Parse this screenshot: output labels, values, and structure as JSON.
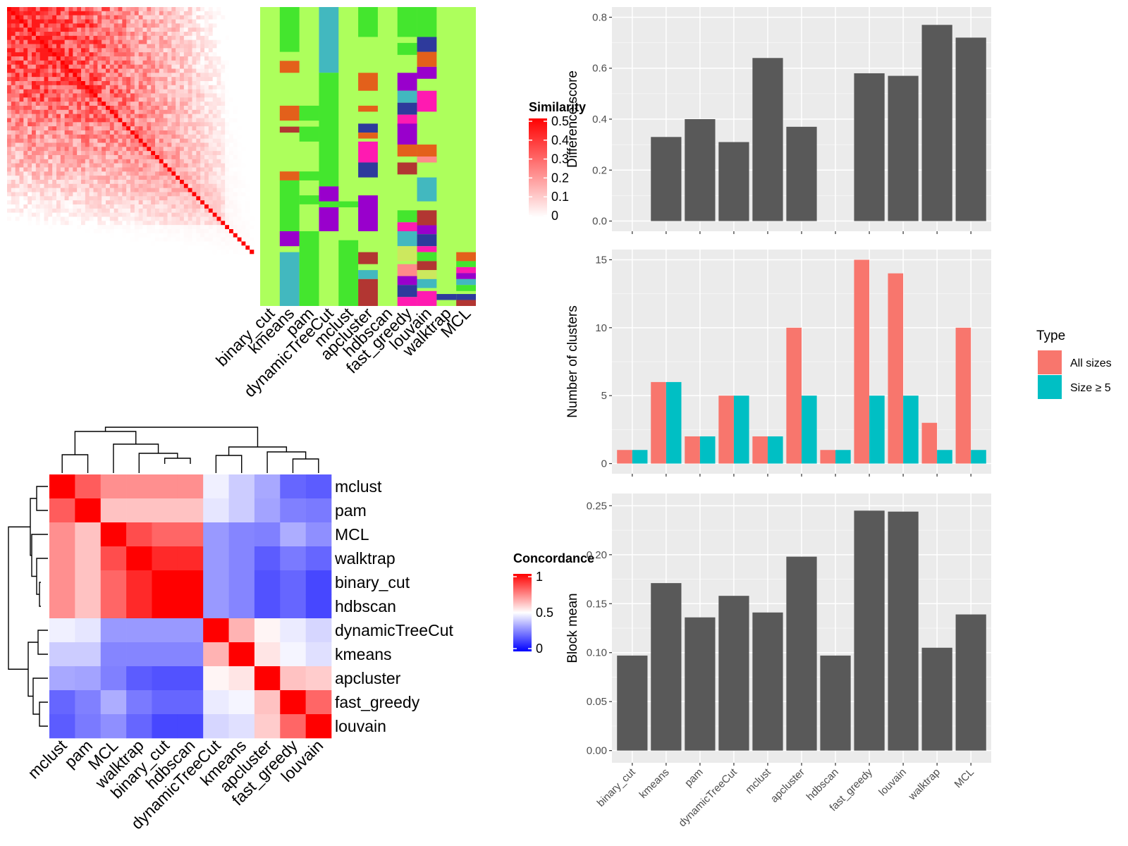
{
  "methods": [
    "binary_cut",
    "kmeans",
    "pam",
    "dynamicTreeCut",
    "mclust",
    "apcluster",
    "hdbscan",
    "fast_greedy",
    "louvain",
    "walktrap",
    "MCL"
  ],
  "similarity_heatmap": {
    "legend_title": "Similarity",
    "legend_ticks": [
      "0.5",
      "0.4",
      "0.3",
      "0.2",
      "0.1",
      "0"
    ],
    "n": 60,
    "colors": {
      "low": "#ffffff",
      "high": "#ff0000"
    }
  },
  "class_panel": {
    "columns": [
      "binary_cut",
      "kmeans",
      "pam",
      "dynamicTreeCut",
      "mclust",
      "apcluster",
      "hdbscan",
      "fast_greedy",
      "louvain",
      "walktrap",
      "MCL"
    ],
    "background": "#adff5c",
    "palette": [
      "#adff5c",
      "#44e62e",
      "#e3601b",
      "#42b8bf",
      "#9900cc",
      "#b23632",
      "#2e3a9c",
      "#ff1ab1",
      "#cce85e",
      "#ff8a8a"
    ]
  },
  "concordance_heatmap": {
    "legend_title": "Concordance",
    "legend_ticks": [
      "1",
      "0.5",
      "0"
    ],
    "row_labels": [
      "mclust",
      "pam",
      "MCL",
      "walktrap",
      "binary_cut",
      "hdbscan",
      "dynamicTreeCut",
      "kmeans",
      "apcluster",
      "fast_greedy",
      "louvain"
    ],
    "col_labels": [
      "mclust",
      "pam",
      "MCL",
      "walktrap",
      "binary_cut",
      "hdbscan",
      "dynamicTreeCut",
      "kmeans",
      "apcluster",
      "fast_greedy",
      "louvain"
    ],
    "colors": {
      "low": "#0000ff",
      "mid": "#ffffff",
      "high": "#ff0000"
    }
  },
  "legend_type": {
    "title": "Type",
    "items": [
      {
        "label": "All sizes",
        "color": "#f8766d"
      },
      {
        "label": "Size ≥ 5",
        "color": "#00bfc4"
      }
    ]
  },
  "chart_data": [
    {
      "type": "heatmap",
      "title": "",
      "legend_title": "Similarity",
      "value_range": [
        0,
        0.5
      ],
      "rows": 60,
      "cols": 60,
      "note": ""
    },
    {
      "type": "heatmap",
      "title": "",
      "legend_title": "Concordance",
      "value_range": [
        0,
        1
      ],
      "rows": [
        "mclust",
        "pam",
        "MCL",
        "walktrap",
        "binary_cut",
        "hdbscan",
        "dynamicTreeCut",
        "kmeans",
        "apcluster",
        "fast_greedy",
        "louvain"
      ],
      "cols": [
        "mclust",
        "pam",
        "MCL",
        "walktrap",
        "binary_cut",
        "hdbscan",
        "dynamicTreeCut",
        "kmeans",
        "apcluster",
        "fast_greedy",
        "louvain"
      ],
      "values": [
        [
          1.0,
          0.82,
          0.72,
          0.72,
          0.72,
          0.72,
          0.47,
          0.4,
          0.33,
          0.2,
          0.18
        ],
        [
          0.82,
          1.0,
          0.62,
          0.62,
          0.62,
          0.62,
          0.45,
          0.4,
          0.32,
          0.25,
          0.24
        ],
        [
          0.72,
          0.62,
          1.0,
          0.85,
          0.8,
          0.8,
          0.3,
          0.26,
          0.25,
          0.34,
          0.28
        ],
        [
          0.72,
          0.62,
          0.85,
          1.0,
          0.92,
          0.92,
          0.3,
          0.26,
          0.18,
          0.24,
          0.2
        ],
        [
          0.72,
          0.62,
          0.8,
          0.92,
          1.0,
          1.0,
          0.3,
          0.26,
          0.16,
          0.2,
          0.14
        ],
        [
          0.72,
          0.62,
          0.8,
          0.92,
          1.0,
          1.0,
          0.3,
          0.26,
          0.16,
          0.2,
          0.14
        ],
        [
          0.47,
          0.45,
          0.3,
          0.3,
          0.3,
          0.3,
          1.0,
          0.65,
          0.52,
          0.46,
          0.42
        ],
        [
          0.4,
          0.4,
          0.26,
          0.26,
          0.26,
          0.26,
          0.65,
          1.0,
          0.55,
          0.48,
          0.44
        ],
        [
          0.33,
          0.32,
          0.25,
          0.18,
          0.16,
          0.16,
          0.52,
          0.55,
          1.0,
          0.62,
          0.6
        ],
        [
          0.2,
          0.25,
          0.34,
          0.24,
          0.2,
          0.2,
          0.46,
          0.48,
          0.62,
          1.0,
          0.8
        ],
        [
          0.18,
          0.24,
          0.28,
          0.2,
          0.14,
          0.14,
          0.42,
          0.44,
          0.6,
          0.8,
          1.0
        ]
      ]
    },
    {
      "type": "bar",
      "title": "",
      "categories": [
        "binary_cut",
        "kmeans",
        "pam",
        "dynamicTreeCut",
        "mclust",
        "apcluster",
        "hdbscan",
        "fast_greedy",
        "louvain",
        "walktrap",
        "MCL"
      ],
      "values": [
        null,
        0.33,
        0.4,
        0.31,
        0.64,
        0.37,
        null,
        0.58,
        0.57,
        0.77,
        0.72
      ],
      "xlabel": "",
      "ylabel": "Difference score",
      "ylim": [
        0,
        0.8
      ],
      "yticks": [
        "0.0",
        "0.2",
        "0.4",
        "0.6",
        "0.8"
      ],
      "bar_color": "#595959"
    },
    {
      "type": "bar",
      "title": "",
      "categories": [
        "binary_cut",
        "kmeans",
        "pam",
        "dynamicTreeCut",
        "mclust",
        "apcluster",
        "hdbscan",
        "fast_greedy",
        "louvain",
        "walktrap",
        "MCL"
      ],
      "series": [
        {
          "name": "All sizes",
          "values": [
            1,
            6,
            2,
            5,
            2,
            10,
            1,
            15,
            14,
            3,
            10
          ]
        },
        {
          "name": "Size ≥ 5",
          "values": [
            1,
            6,
            2,
            5,
            2,
            5,
            1,
            5,
            5,
            1,
            1
          ]
        }
      ],
      "xlabel": "",
      "ylabel": "Number of clusters",
      "ylim": [
        0,
        15
      ],
      "yticks": [
        "0",
        "5",
        "10",
        "15"
      ],
      "legend_title": "Type",
      "legend_position": "right"
    },
    {
      "type": "bar",
      "title": "",
      "categories": [
        "binary_cut",
        "kmeans",
        "pam",
        "dynamicTreeCut",
        "mclust",
        "apcluster",
        "hdbscan",
        "fast_greedy",
        "louvain",
        "walktrap",
        "MCL"
      ],
      "values": [
        0.097,
        0.171,
        0.136,
        0.158,
        0.141,
        0.198,
        0.097,
        0.245,
        0.244,
        0.105,
        0.139
      ],
      "xlabel": "",
      "ylabel": "Block mean",
      "ylim": [
        0,
        0.25
      ],
      "yticks": [
        "0.00",
        "0.05",
        "0.10",
        "0.15",
        "0.20",
        "0.25"
      ],
      "bar_color": "#595959"
    }
  ]
}
